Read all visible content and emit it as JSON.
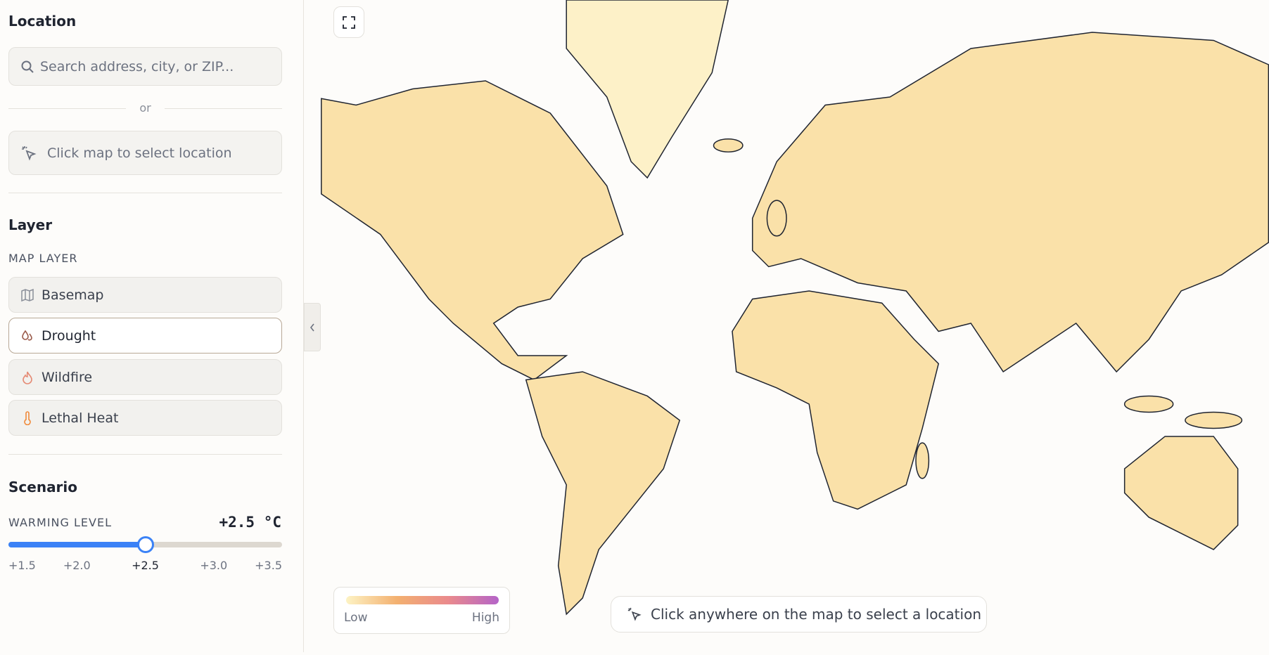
{
  "sidebar": {
    "location": {
      "title": "Location",
      "search_placeholder": "Search address, city, or ZIP...",
      "divider": "or",
      "click_button": "Click map to select location"
    },
    "layer": {
      "title": "Layer",
      "subtitle": "MAP LAYER",
      "options": [
        "Basemap",
        "Drought",
        "Wildfire",
        "Lethal Heat"
      ],
      "selected": "Drought"
    },
    "scenario": {
      "title": "Scenario",
      "label": "WARMING LEVEL",
      "value_label": "+2.5 °C",
      "slider": {
        "value": 2.5,
        "min": 1.5,
        "max": 3.5,
        "ticks": [
          "+1.5",
          "+2.0",
          "+2.5",
          "+3.0",
          "+3.5"
        ]
      }
    }
  },
  "map": {
    "legend": {
      "low": "Low",
      "high": "High"
    },
    "hint": "Click anywhere on the map to select a location"
  }
}
